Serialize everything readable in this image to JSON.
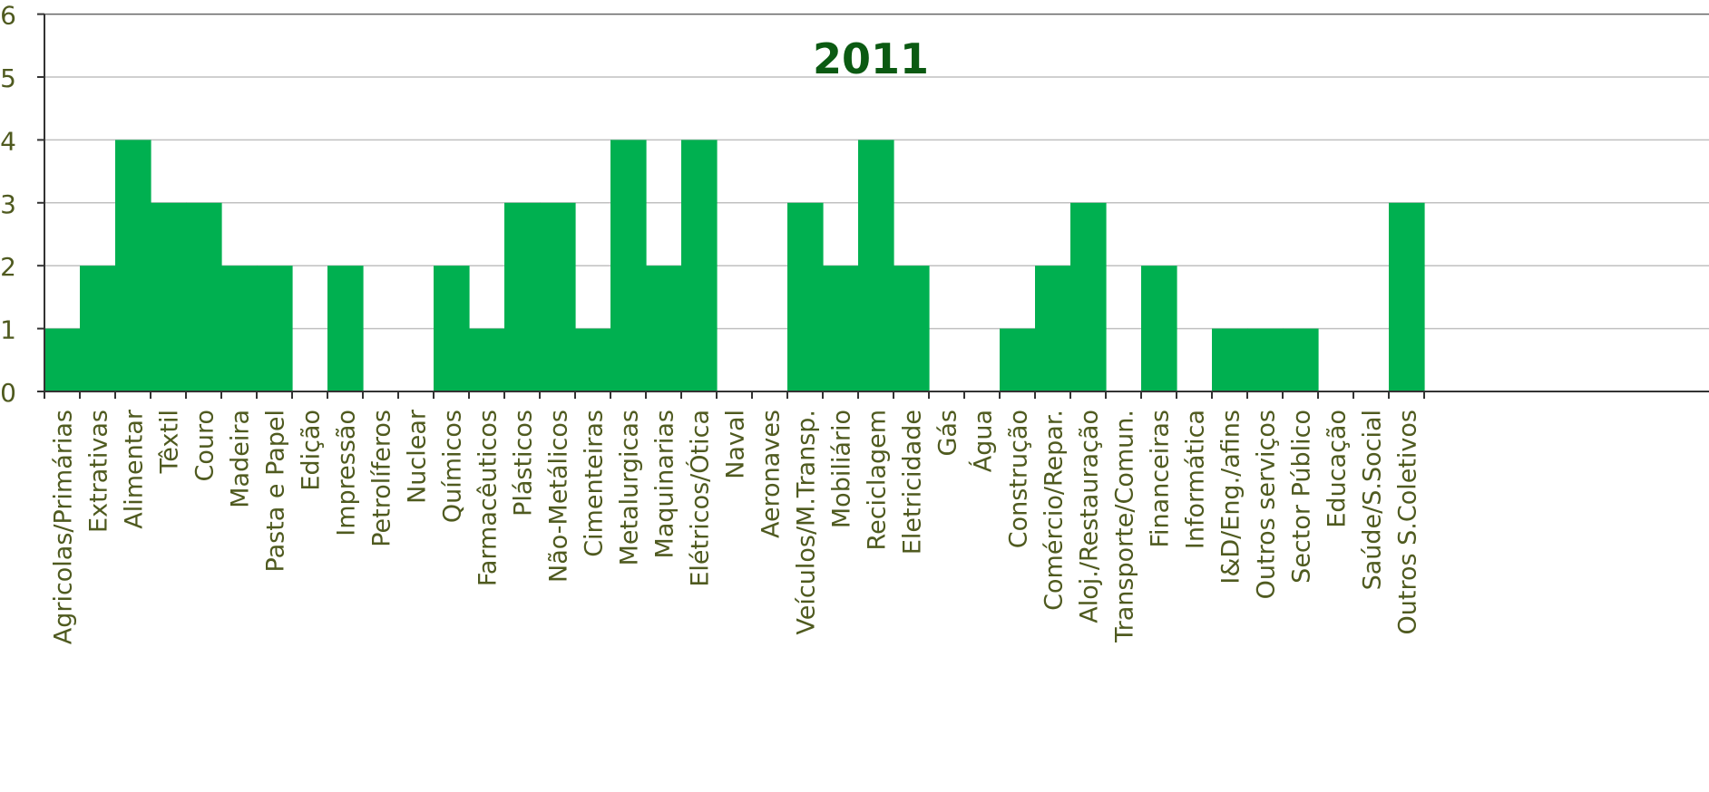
{
  "chart_data": {
    "type": "bar",
    "title": "2011",
    "xlabel": "",
    "ylabel": "",
    "ylim": [
      0,
      6
    ],
    "yticks": [
      "0",
      "1",
      "2",
      "3",
      "4",
      "5",
      "6"
    ],
    "grid": true,
    "categories": [
      "Agricolas/Primárias",
      "Extrativas",
      "Alimentar",
      "Têxtil",
      "Couro",
      "Madeira",
      "Pasta e Papel",
      "Edição",
      "Impressão",
      "Petrolíferos",
      "Nuclear",
      "Químicos",
      "Farmacêuticos",
      "Plásticos",
      "Não-Metálicos",
      "Cimenteiras",
      "Metalurgicas",
      "Maquinarias",
      "Elétricos/Ótica",
      "Naval",
      "Aeronaves",
      "Veículos/M.Transp.",
      "Mobiliário",
      "Reciclagem",
      "Eletricidade",
      "Gás",
      "Água",
      "Construção",
      "Comércio/Repar.",
      "Aloj./Restauração",
      "Transporte/Comun.",
      "Financeiras",
      "Informática",
      "I&D/Eng./afins",
      "Outros serviços",
      "Sector Público",
      "Educação",
      "Saúde/S.Social",
      "Outros S.Coletivos"
    ],
    "values": [
      1,
      2,
      4,
      3,
      3,
      2,
      2,
      0,
      2,
      0,
      0,
      2,
      1,
      3,
      3,
      1,
      4,
      2,
      4,
      0,
      0,
      3,
      2,
      4,
      2,
      0,
      0,
      1,
      2,
      3,
      0,
      2,
      0,
      1,
      1,
      1,
      0,
      0,
      3
    ],
    "colors": {
      "bar": "#00b050",
      "title": "#0b5a12",
      "label": "#4f5a1f",
      "grid": "#c0c0c0",
      "axis": "#333333"
    }
  }
}
